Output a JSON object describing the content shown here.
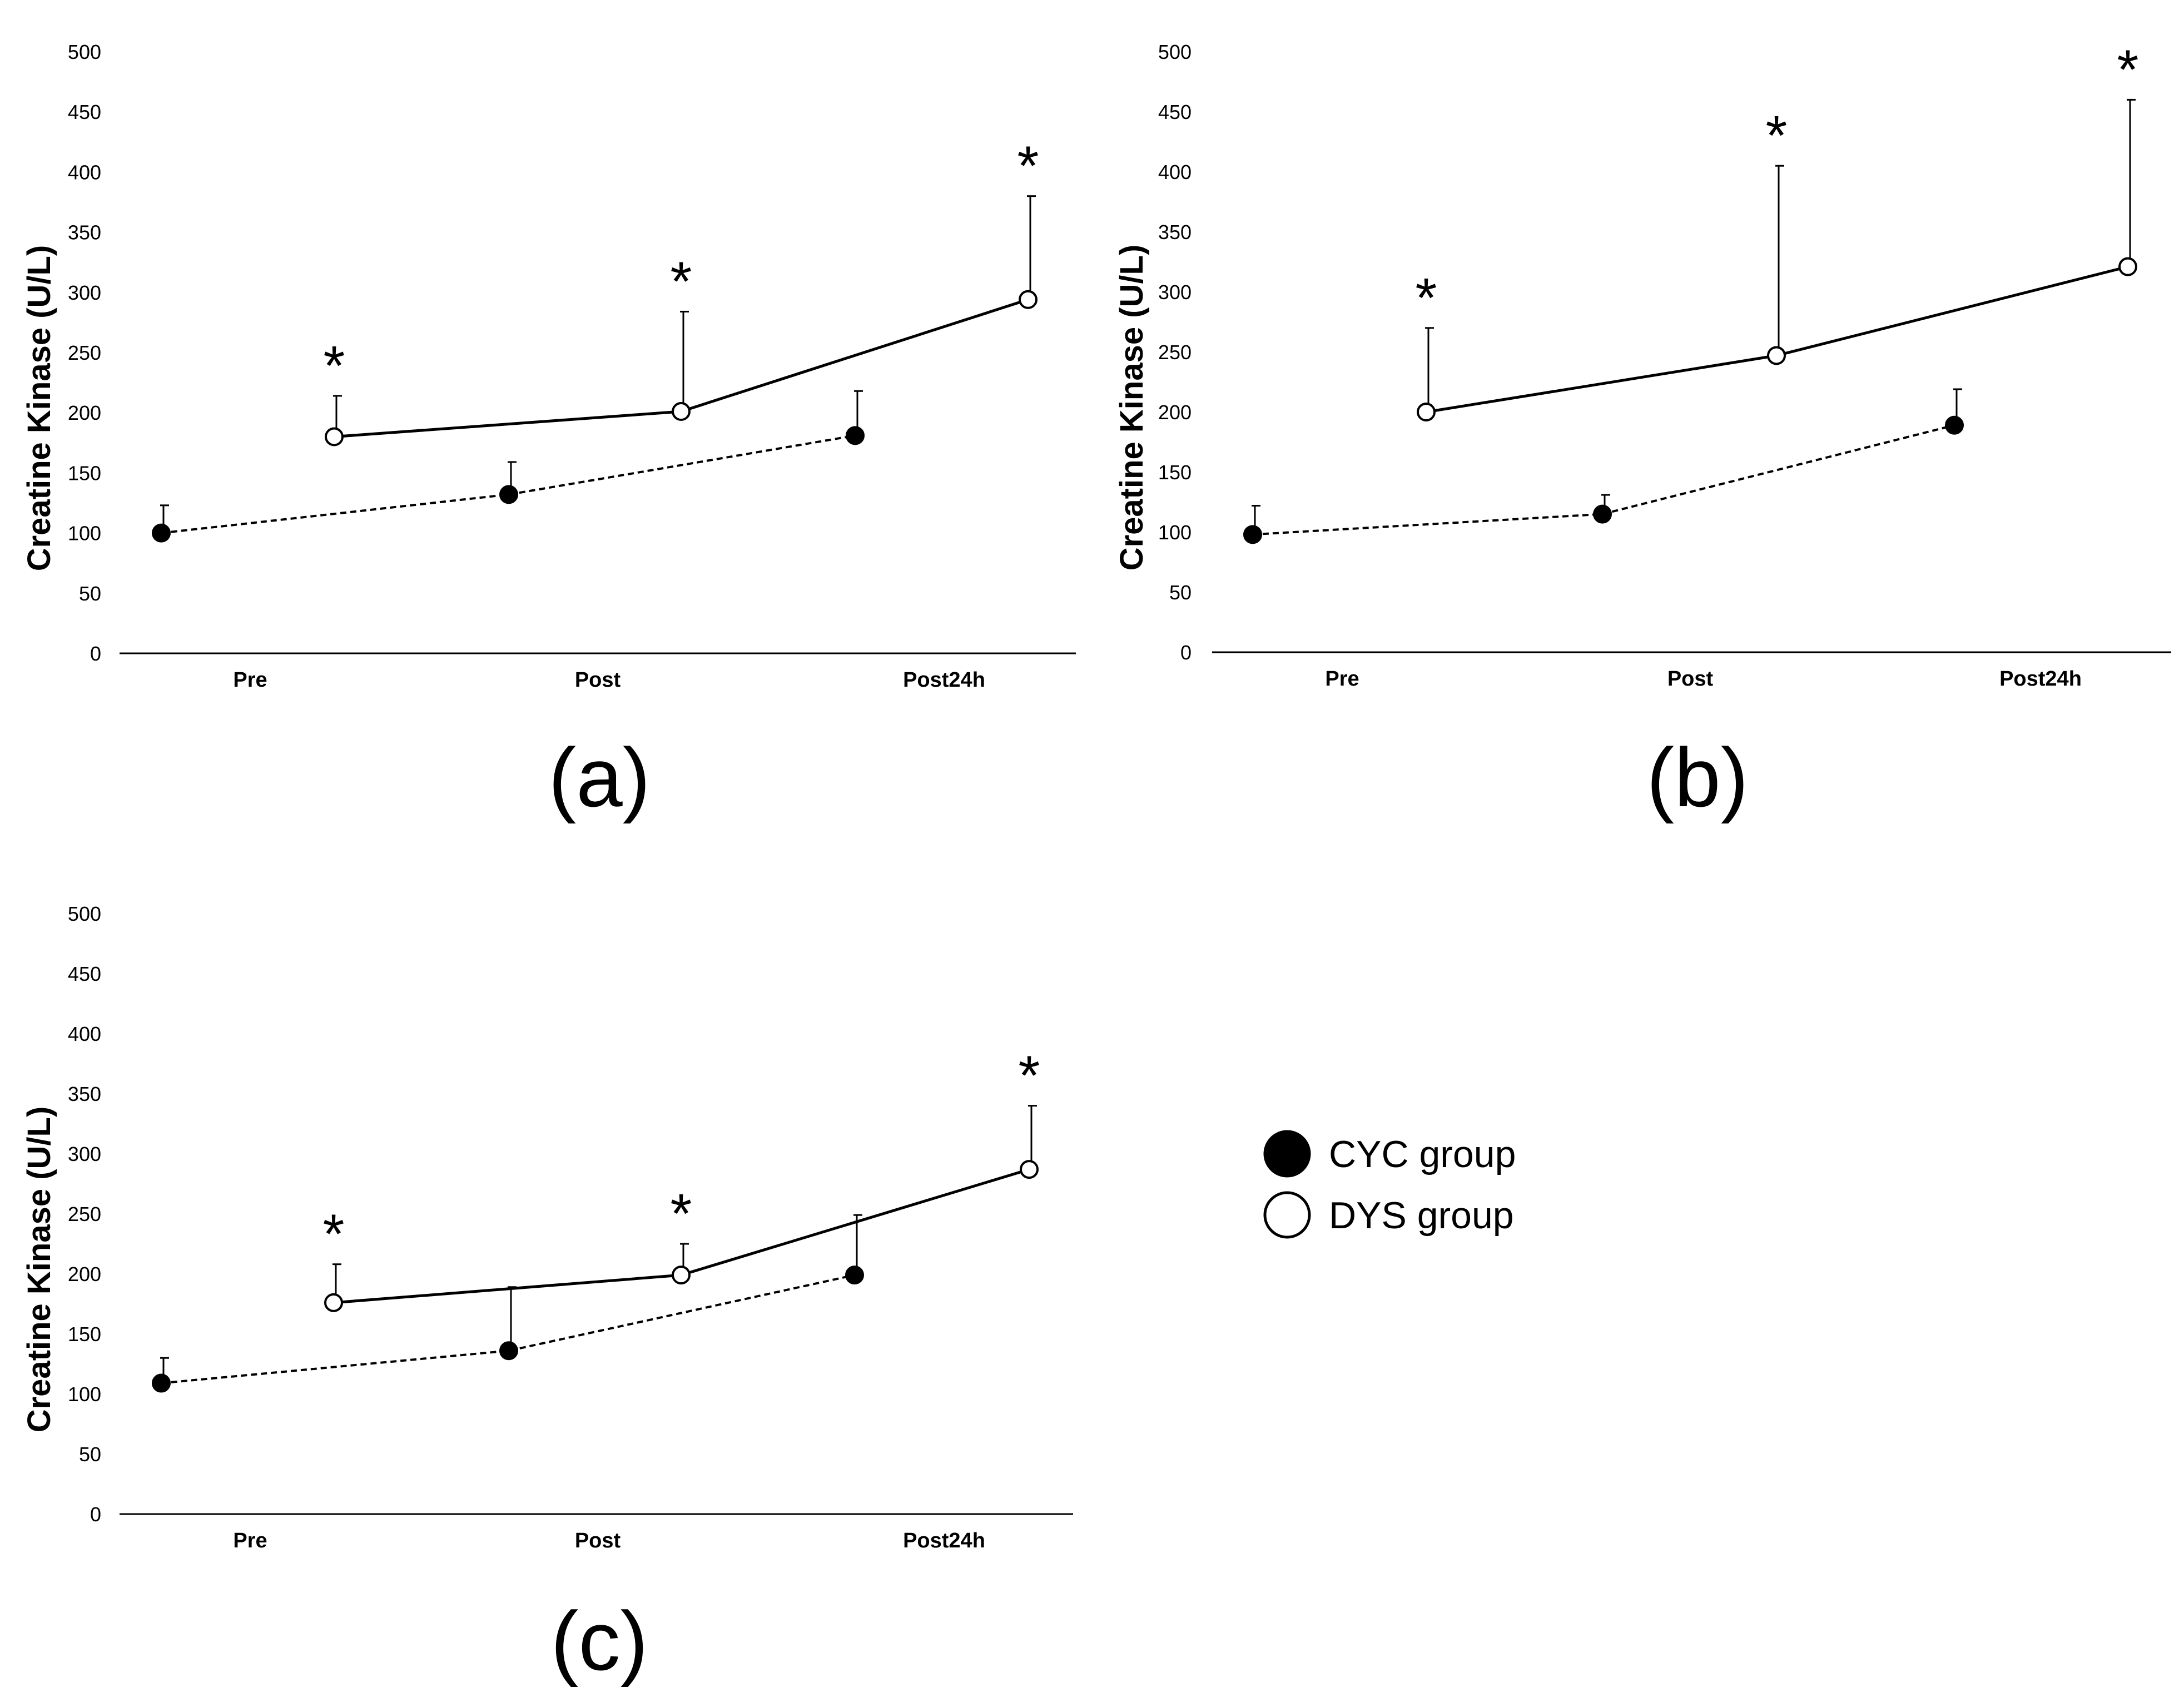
{
  "legend": {
    "items": [
      {
        "label": "CYC group",
        "marker": "filled"
      },
      {
        "label": "DYS group",
        "marker": "open"
      }
    ]
  },
  "chart_data": [
    {
      "type": "line",
      "panel_label": "(a)",
      "ylabel": "Creatine Kinase (U/L)",
      "yticks": [
        "0",
        "50",
        "100",
        "150",
        "200",
        "250",
        "300",
        "350",
        "400",
        "450",
        "500"
      ],
      "ylim": [
        0,
        500
      ],
      "categories": [
        "Pre",
        "Post",
        "Post24h"
      ],
      "series": [
        {
          "name": "CYC group",
          "marker": "filled",
          "line": "dashed",
          "values": [
            100,
            132,
            181
          ],
          "errors": [
            23,
            27,
            37
          ]
        },
        {
          "name": "DYS group",
          "marker": "open",
          "line": "solid",
          "values": [
            180,
            201,
            294
          ],
          "errors": [
            34,
            83,
            86
          ],
          "significance": [
            "*",
            "*",
            "*"
          ]
        }
      ]
    },
    {
      "type": "line",
      "panel_label": "(b)",
      "ylabel": "Creatine Kinase (U/L)",
      "yticks": [
        "0",
        "50",
        "100",
        "150",
        "200",
        "250",
        "300",
        "350",
        "400",
        "450",
        "500"
      ],
      "ylim": [
        0,
        500
      ],
      "categories": [
        "Pre",
        "Post",
        "Post24h"
      ],
      "series": [
        {
          "name": "CYC group",
          "marker": "filled",
          "line": "dashed",
          "values": [
            98,
            115,
            189
          ],
          "errors": [
            24,
            16,
            30
          ]
        },
        {
          "name": "DYS group",
          "marker": "open",
          "line": "solid",
          "values": [
            200,
            247,
            321
          ],
          "errors": [
            70,
            158,
            139
          ],
          "significance": [
            "*",
            "*",
            "*"
          ]
        }
      ]
    },
    {
      "type": "line",
      "panel_label": "(c)",
      "ylabel": "Creatine Kinase (U/L)",
      "yticks": [
        "0",
        "50",
        "100",
        "150",
        "200",
        "250",
        "300",
        "350",
        "400",
        "450",
        "500"
      ],
      "ylim": [
        0,
        500
      ],
      "categories": [
        "Pre",
        "Post",
        "Post24h"
      ],
      "series": [
        {
          "name": "CYC group",
          "marker": "filled",
          "line": "dashed",
          "values": [
            109,
            136,
            199
          ],
          "errors": [
            21,
            53,
            50
          ]
        },
        {
          "name": "DYS group",
          "marker": "open",
          "line": "solid",
          "values": [
            176,
            199,
            287
          ],
          "errors": [
            32,
            26,
            53
          ],
          "significance": [
            "*",
            "*",
            "*"
          ]
        }
      ]
    }
  ]
}
